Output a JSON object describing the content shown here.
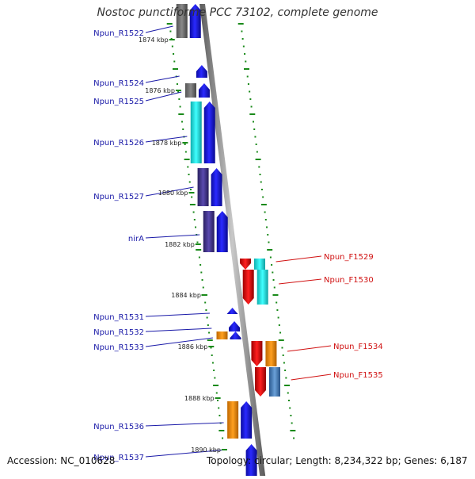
{
  "title": "Nostoc punctiforme PCC 73102, complete genome",
  "footer": {
    "accession": "Accession: NC_010628",
    "summary": "Topology: circular; Length: 8,234,322 bp; Genes: 6,187"
  },
  "colors": {
    "reverse_label": "#1a1aa8",
    "forward_label": "#d01010",
    "tick": "#1a8a1a",
    "backbone": "#888888"
  },
  "kbp_marks": [
    "1874 kbp",
    "1876 kbp",
    "1878 kbp",
    "1880 kbp",
    "1882 kbp",
    "1884 kbp",
    "1886 kbp",
    "1888 kbp",
    "1890 kbp"
  ],
  "reverse_genes": [
    "Npun_R1522",
    "Npun_R1524",
    "Npun_R1525",
    "Npun_R1526",
    "Npun_R1527",
    "nirA",
    "Npun_R1531",
    "Npun_R1532",
    "Npun_R1533",
    "Npun_R1536",
    "Npun_R1537"
  ],
  "forward_genes": [
    "Npun_F1529",
    "Npun_F1530",
    "Npun_F1534",
    "Npun_F1535"
  ]
}
